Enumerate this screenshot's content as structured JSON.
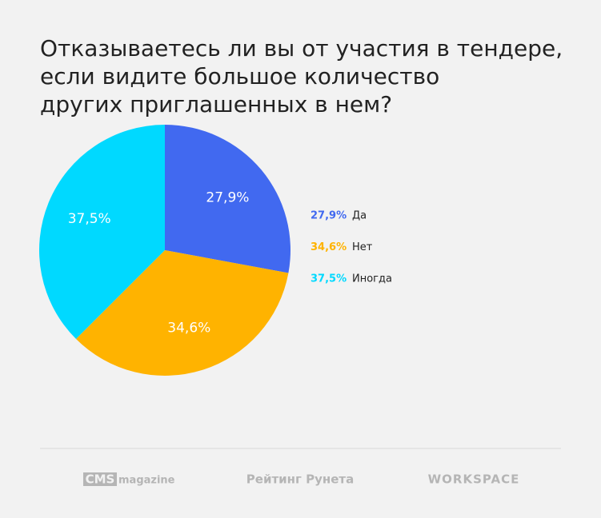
{
  "chart_data": {
    "type": "pie",
    "title": [
      "Отказываетесь ли вы от участия в тендере,",
      "если видите большое количество",
      "других приглашенных в нем?"
    ],
    "categories": [
      "Да",
      "Нет",
      "Иногда"
    ],
    "values": [
      27.9,
      34.6,
      37.5
    ],
    "value_labels": [
      "27,9%",
      "34,6%",
      "37,5%"
    ],
    "colors": [
      "#4169f0",
      "#ffb300",
      "#00d9ff"
    ]
  },
  "footer": {
    "cms": "CMS",
    "cms_suffix": "magazine",
    "rating": "Рейтинг Рунета",
    "workspace": "WORKSPACE"
  }
}
